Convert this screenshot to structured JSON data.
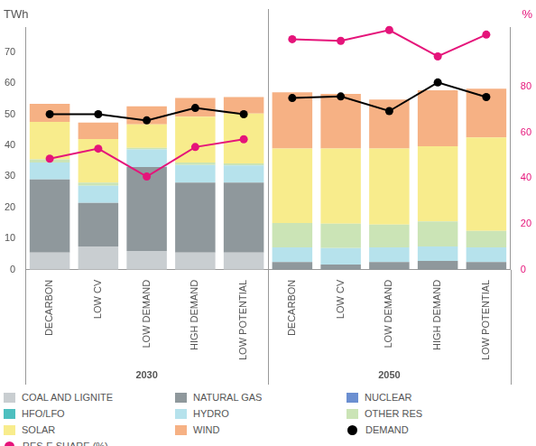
{
  "chart_data": {
    "type": "bar",
    "stacked": true,
    "y_label": "TWh",
    "y2_label": "%",
    "categories": [
      "DECARBON",
      "LOW CV",
      "LOW DEMAND",
      "HIGH DEMAND",
      "LOW POTENTIAL",
      "DECARBON",
      "LOW CV",
      "LOW DEMAND",
      "HIGH DEMAND",
      "LOW POTENTIAL"
    ],
    "groups": [
      "2030",
      "2050"
    ],
    "series": [
      {
        "name": "COAL AND LIGNITE",
        "color": "#c9ced1",
        "values": [
          5.5,
          7.5,
          6,
          5.5,
          5.5,
          0,
          0,
          0,
          0,
          0
        ]
      },
      {
        "name": "NATURAL GAS",
        "color": "#8f989c",
        "values": [
          23.5,
          14,
          27,
          22.5,
          22.5,
          2.5,
          1.7,
          2.5,
          2.8,
          2.5
        ]
      },
      {
        "name": "NUCLEAR",
        "color": "#6b8fd1",
        "values": [
          0,
          0,
          0,
          0,
          0,
          0,
          0,
          0,
          0,
          0
        ]
      },
      {
        "name": "HFO/LFO",
        "color": "#4dbfbf",
        "values": [
          0,
          0,
          0,
          0,
          0,
          0,
          0,
          0,
          0,
          0
        ]
      },
      {
        "name": "HYDRO",
        "color": "#b6e2ec",
        "values": [
          5.5,
          5.5,
          5.7,
          5.7,
          5.5,
          4.7,
          5.3,
          4.7,
          4.7,
          4.7
        ]
      },
      {
        "name": "OTHER RES",
        "color": "#cbe4b6",
        "values": [
          1,
          1,
          0.5,
          0.8,
          0.7,
          7.8,
          7.8,
          7.3,
          8,
          5.3
        ]
      },
      {
        "name": "SOLAR",
        "color": "#f8ec8c",
        "values": [
          12,
          14,
          7.5,
          14.7,
          16,
          24,
          24.2,
          24.5,
          24.2,
          30
        ]
      },
      {
        "name": "WIND",
        "color": "#f6b184",
        "values": [
          5.8,
          5.3,
          5.8,
          6,
          5.3,
          18,
          17.5,
          15.7,
          18,
          15.7
        ]
      },
      {
        "name": "DEMAND",
        "type": "line",
        "marker": "circle",
        "color": "#000000",
        "values": [
          50,
          50,
          48,
          52,
          50,
          55.2,
          55.7,
          51,
          60.2,
          55.5
        ]
      },
      {
        "name": "RES-E SHARE (%)",
        "type": "line",
        "marker": "circle",
        "axis": "y2",
        "color": "#e5147a",
        "values": [
          48.5,
          52.9,
          40.7,
          53.6,
          57,
          100.7,
          100,
          104.7,
          93.2,
          102.7
        ]
      }
    ],
    "ylim": [
      0,
      78
    ],
    "yticks": [
      0,
      10,
      20,
      30,
      40,
      50,
      60,
      70
    ],
    "y2lim": [
      0,
      106
    ],
    "y2ticks": [
      0,
      20,
      40,
      60,
      80
    ],
    "grid": false,
    "legend": "bottom"
  }
}
